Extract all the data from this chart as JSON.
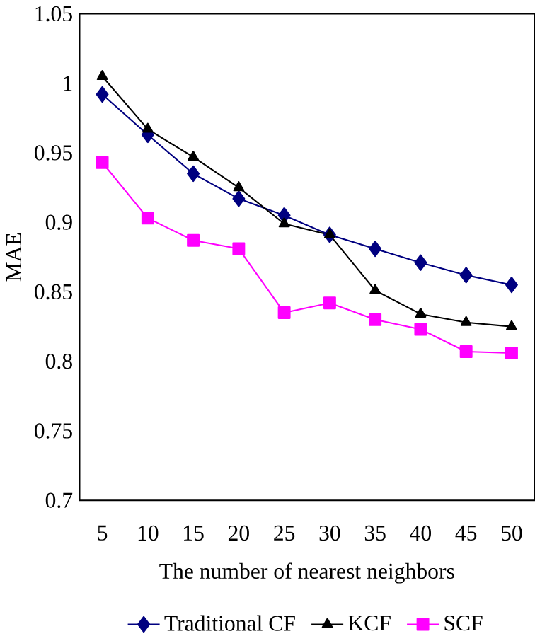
{
  "chart_data": {
    "type": "line",
    "xlabel": "The number of nearest neighbors",
    "ylabel": "MAE",
    "categories": [
      "5",
      "10",
      "15",
      "20",
      "25",
      "30",
      "35",
      "40",
      "45",
      "50"
    ],
    "series": [
      {
        "name": "Traditional CF",
        "color": "#000080",
        "marker": "diamond",
        "values": [
          0.992,
          0.963,
          0.935,
          0.917,
          0.905,
          0.891,
          0.881,
          0.871,
          0.862,
          0.855
        ]
      },
      {
        "name": "KCF",
        "color": "#000000",
        "marker": "triangle",
        "values": [
          1.005,
          0.967,
          0.947,
          0.925,
          0.899,
          0.891,
          0.851,
          0.834,
          0.828,
          0.825
        ]
      },
      {
        "name": "SCF",
        "color": "#ff00ff",
        "marker": "square",
        "values": [
          0.943,
          0.903,
          0.887,
          0.881,
          0.835,
          0.842,
          0.83,
          0.823,
          0.807,
          0.806
        ]
      }
    ],
    "ylim": [
      0.7,
      1.05
    ],
    "yticks": [
      0.7,
      0.75,
      0.8,
      0.85,
      0.9,
      0.95,
      1,
      1.05
    ],
    "grid": false,
    "legend": "bottom",
    "line_style": "solid"
  }
}
